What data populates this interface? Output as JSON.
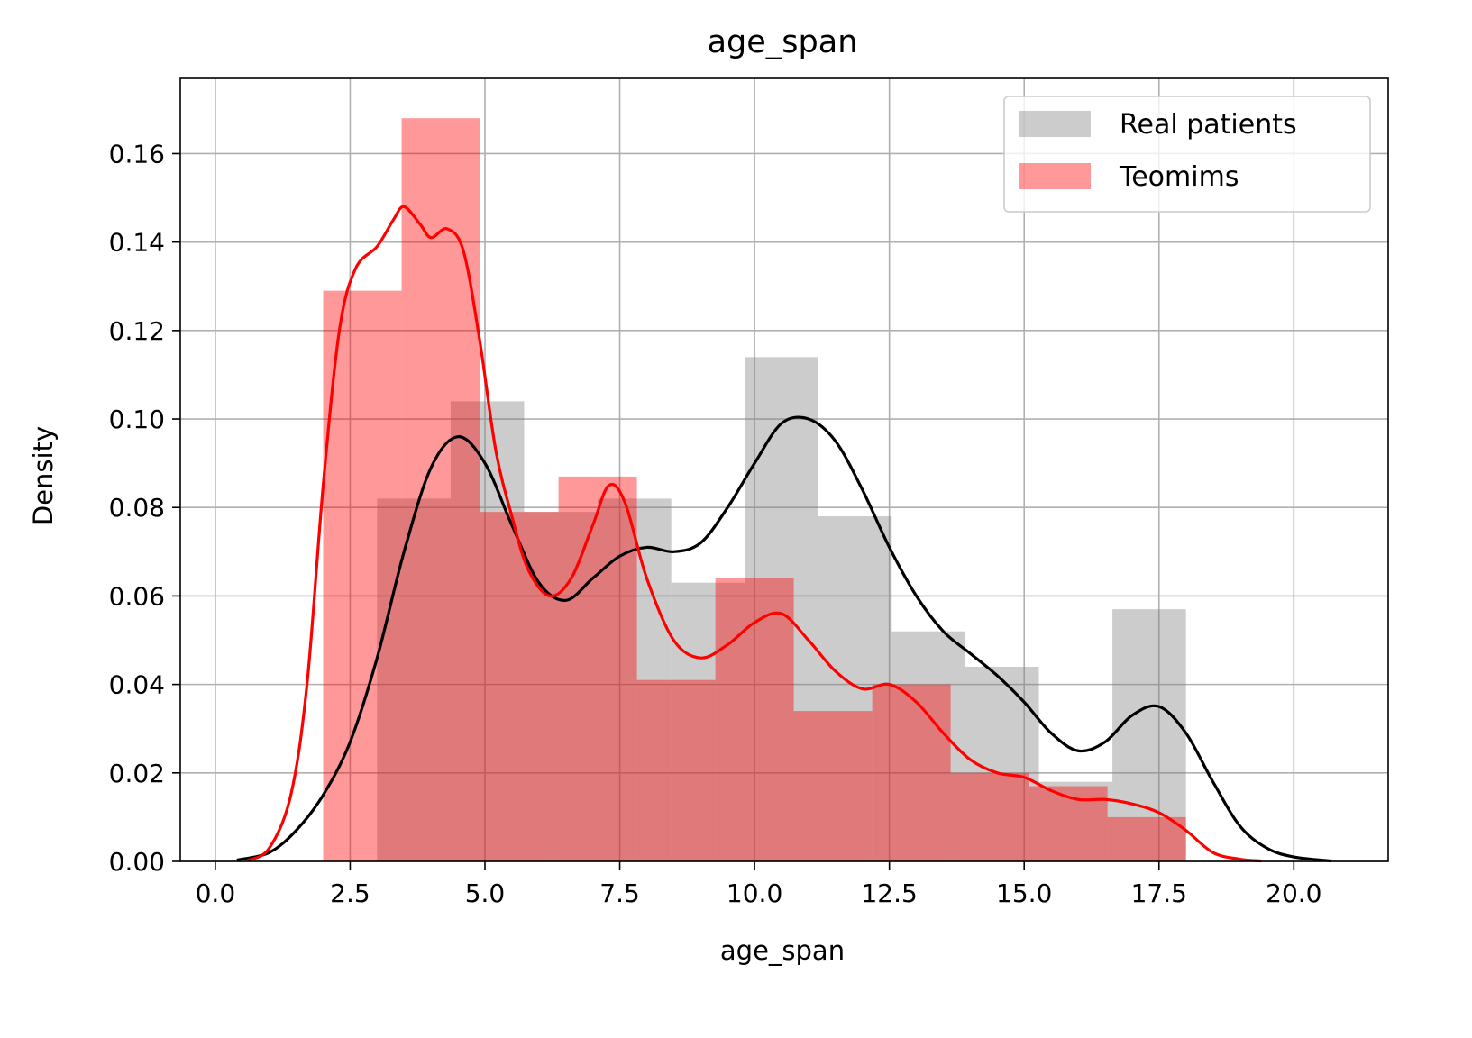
{
  "chart_data": {
    "type": "bar",
    "title": "age_span",
    "xlabel": "age_span",
    "ylabel": "Density",
    "xlim": [
      -0.65,
      21.75
    ],
    "ylim": [
      0,
      0.177
    ],
    "xticks": [
      0.0,
      2.5,
      5.0,
      7.5,
      10.0,
      12.5,
      15.0,
      17.5,
      20.0
    ],
    "xtick_labels": [
      "0.0",
      "2.5",
      "5.0",
      "7.5",
      "10.0",
      "12.5",
      "15.0",
      "17.5",
      "20.0"
    ],
    "yticks": [
      0.0,
      0.02,
      0.04,
      0.06,
      0.08,
      0.1,
      0.12,
      0.14,
      0.16
    ],
    "ytick_labels": [
      "0.00",
      "0.02",
      "0.04",
      "0.06",
      "0.08",
      "0.10",
      "0.12",
      "0.14",
      "0.16"
    ],
    "grid": true,
    "legend_position": "top-right",
    "series": [
      {
        "name": "Real patients",
        "color": "#808080",
        "kde_color": "#000000",
        "bin_edges": [
          3.0,
          4.364,
          5.727,
          7.091,
          8.455,
          9.818,
          11.182,
          12.545,
          13.909,
          15.273,
          16.636,
          18.0
        ],
        "values": [
          0.082,
          0.104,
          0.079,
          0.082,
          0.063,
          0.114,
          0.078,
          0.052,
          0.044,
          0.018,
          0.057
        ],
        "kde": [
          [
            0.4,
            0.0003
          ],
          [
            1.0,
            0.002
          ],
          [
            1.5,
            0.007
          ],
          [
            2.0,
            0.015
          ],
          [
            2.5,
            0.027
          ],
          [
            3.0,
            0.046
          ],
          [
            3.5,
            0.07
          ],
          [
            4.0,
            0.089
          ],
          [
            4.5,
            0.096
          ],
          [
            5.0,
            0.09
          ],
          [
            5.5,
            0.076
          ],
          [
            6.0,
            0.063
          ],
          [
            6.5,
            0.059
          ],
          [
            7.0,
            0.064
          ],
          [
            7.5,
            0.069
          ],
          [
            8.0,
            0.071
          ],
          [
            8.5,
            0.07
          ],
          [
            9.0,
            0.072
          ],
          [
            9.5,
            0.08
          ],
          [
            10.0,
            0.09
          ],
          [
            10.5,
            0.099
          ],
          [
            11.0,
            0.1
          ],
          [
            11.5,
            0.095
          ],
          [
            12.0,
            0.084
          ],
          [
            12.5,
            0.071
          ],
          [
            13.0,
            0.06
          ],
          [
            13.5,
            0.052
          ],
          [
            14.0,
            0.047
          ],
          [
            14.5,
            0.042
          ],
          [
            15.0,
            0.036
          ],
          [
            15.5,
            0.029
          ],
          [
            16.0,
            0.025
          ],
          [
            16.5,
            0.027
          ],
          [
            17.0,
            0.033
          ],
          [
            17.5,
            0.035
          ],
          [
            18.0,
            0.029
          ],
          [
            18.5,
            0.018
          ],
          [
            19.0,
            0.008
          ],
          [
            19.5,
            0.003
          ],
          [
            20.0,
            0.001
          ],
          [
            20.7,
            0.0001
          ]
        ]
      },
      {
        "name": "Teomims",
        "color": "#ff0000",
        "kde_color": "#ff0000",
        "bin_edges": [
          2.0,
          3.455,
          4.909,
          6.364,
          7.818,
          9.273,
          10.727,
          12.182,
          13.636,
          15.091,
          16.545,
          18.0
        ],
        "values": [
          0.129,
          0.168,
          0.079,
          0.087,
          0.041,
          0.064,
          0.034,
          0.04,
          0.02,
          0.017,
          0.01
        ],
        "kde": [
          [
            0.6,
            0.0002
          ],
          [
            1.0,
            0.003
          ],
          [
            1.4,
            0.015
          ],
          [
            1.7,
            0.04
          ],
          [
            2.0,
            0.085
          ],
          [
            2.3,
            0.12
          ],
          [
            2.6,
            0.134
          ],
          [
            3.0,
            0.139
          ],
          [
            3.3,
            0.145
          ],
          [
            3.5,
            0.148
          ],
          [
            3.8,
            0.144
          ],
          [
            4.0,
            0.141
          ],
          [
            4.3,
            0.143
          ],
          [
            4.6,
            0.138
          ],
          [
            4.9,
            0.118
          ],
          [
            5.2,
            0.093
          ],
          [
            5.5,
            0.078
          ],
          [
            5.8,
            0.066
          ],
          [
            6.2,
            0.06
          ],
          [
            6.6,
            0.064
          ],
          [
            7.0,
            0.076
          ],
          [
            7.3,
            0.085
          ],
          [
            7.6,
            0.081
          ],
          [
            8.0,
            0.064
          ],
          [
            8.5,
            0.05
          ],
          [
            9.0,
            0.046
          ],
          [
            9.5,
            0.049
          ],
          [
            10.0,
            0.054
          ],
          [
            10.5,
            0.056
          ],
          [
            11.0,
            0.05
          ],
          [
            11.5,
            0.043
          ],
          [
            12.0,
            0.039
          ],
          [
            12.5,
            0.04
          ],
          [
            13.0,
            0.036
          ],
          [
            13.5,
            0.029
          ],
          [
            14.0,
            0.023
          ],
          [
            14.5,
            0.02
          ],
          [
            15.0,
            0.019
          ],
          [
            15.5,
            0.016
          ],
          [
            16.0,
            0.014
          ],
          [
            16.5,
            0.014
          ],
          [
            17.0,
            0.013
          ],
          [
            17.5,
            0.011
          ],
          [
            18.0,
            0.007
          ],
          [
            18.5,
            0.002
          ],
          [
            19.0,
            0.0005
          ],
          [
            19.4,
            0.0001
          ]
        ]
      }
    ]
  }
}
